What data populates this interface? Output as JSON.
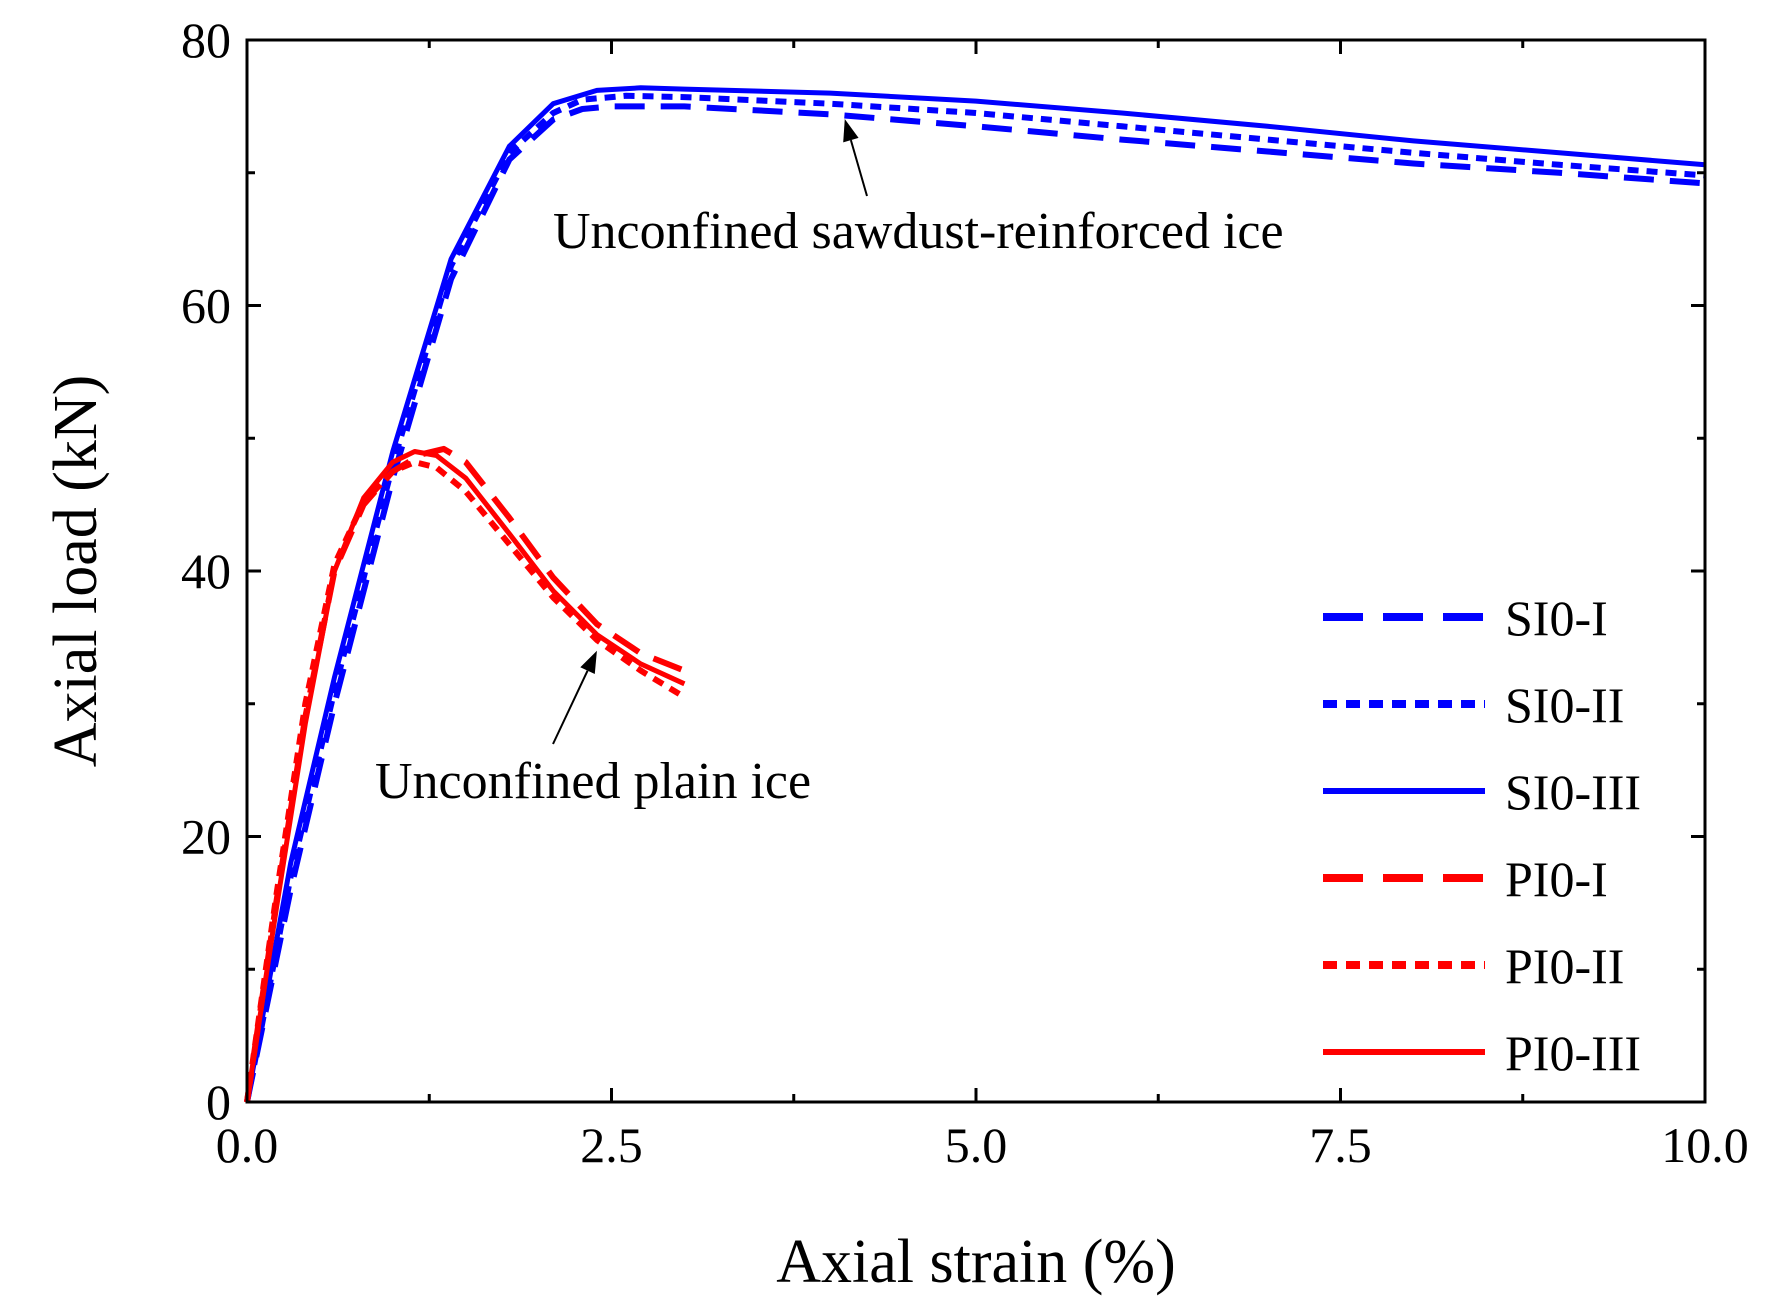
{
  "chart_data": {
    "type": "line",
    "xlabel": "Axial strain (%)",
    "ylabel": "Axial load (kN)",
    "xlim": [
      0,
      10
    ],
    "ylim": [
      0,
      80
    ],
    "x_ticks": [
      0,
      2.5,
      5,
      7.5,
      10
    ],
    "x_tick_labels": [
      "0.0",
      "2.5",
      "5.0",
      "7.5",
      "10.0"
    ],
    "y_ticks": [
      0,
      20,
      40,
      60,
      80
    ],
    "y_tick_labels": [
      "0",
      "20",
      "40",
      "60",
      "80"
    ],
    "grid": false,
    "legend_position": "bottom-right",
    "series": [
      {
        "name": "SI0-I",
        "color": "#0000ff",
        "style": "dashed",
        "x": [
          0,
          0.3,
          0.6,
          1.0,
          1.4,
          1.8,
          2.1,
          2.3,
          2.5,
          3.0,
          4.0,
          5.0,
          6.0,
          7.0,
          8.0,
          9.0,
          10.0
        ],
        "y": [
          0,
          16,
          30,
          47,
          62,
          71,
          74,
          74.8,
          75,
          75,
          74.4,
          73.5,
          72.5,
          71.6,
          70.7,
          70.0,
          69.2
        ]
      },
      {
        "name": "SI0-II",
        "color": "#0000ff",
        "style": "dotted",
        "x": [
          0,
          0.3,
          0.6,
          1.0,
          1.4,
          1.8,
          2.1,
          2.3,
          2.6,
          3.0,
          4.0,
          5.0,
          6.0,
          7.0,
          8.0,
          9.0,
          10.0
        ],
        "y": [
          0,
          17,
          31,
          48,
          63,
          71.5,
          74.5,
          75.5,
          75.8,
          75.7,
          75.2,
          74.5,
          73.5,
          72.5,
          71.5,
          70.6,
          69.8
        ]
      },
      {
        "name": "SI0-III",
        "color": "#0000ff",
        "style": "solid",
        "x": [
          0,
          0.3,
          0.6,
          1.0,
          1.4,
          1.8,
          2.1,
          2.4,
          2.7,
          3.0,
          4.0,
          5.0,
          6.0,
          7.0,
          8.0,
          9.0,
          10.0
        ],
        "y": [
          0,
          18,
          32,
          49,
          63.5,
          72,
          75.2,
          76.2,
          76.4,
          76.3,
          76,
          75.4,
          74.5,
          73.5,
          72.4,
          71.5,
          70.6
        ]
      },
      {
        "name": "PI0-I",
        "color": "#ff0000",
        "style": "dashed",
        "x": [
          0,
          0.2,
          0.4,
          0.6,
          0.8,
          1.0,
          1.2,
          1.35,
          1.5,
          1.8,
          2.1,
          2.4,
          2.7,
          3.0
        ],
        "y": [
          0,
          15,
          29,
          40,
          45,
          47.5,
          48.8,
          49.2,
          48.2,
          44,
          39.5,
          36,
          33.8,
          32.5
        ]
      },
      {
        "name": "PI0-II",
        "color": "#ff0000",
        "style": "dotted",
        "x": [
          0,
          0.2,
          0.4,
          0.6,
          0.8,
          1.0,
          1.15,
          1.3,
          1.5,
          1.8,
          2.1,
          2.4,
          2.7,
          3.0
        ],
        "y": [
          0,
          15.5,
          30,
          40.5,
          45.2,
          47.5,
          48.2,
          47.8,
          46,
          42,
          38,
          34.8,
          32.5,
          30.5
        ]
      },
      {
        "name": "PI0-III",
        "color": "#ff0000",
        "style": "solid",
        "x": [
          0,
          0.2,
          0.4,
          0.6,
          0.8,
          1.0,
          1.15,
          1.3,
          1.5,
          1.8,
          2.1,
          2.4,
          2.7,
          3.0
        ],
        "y": [
          0,
          14.5,
          28.5,
          40,
          45.5,
          48.2,
          49,
          48.7,
          47,
          42.8,
          38.5,
          35.2,
          33,
          31.5
        ]
      }
    ],
    "annotations": [
      {
        "text": "Unconfined sawdust-reinforced ice",
        "arrow_target": {
          "x": 4.1,
          "y": 74.5
        }
      },
      {
        "text": "Unconfined plain ice",
        "arrow_target": {
          "x": 2.4,
          "y": 35.5
        }
      }
    ]
  }
}
